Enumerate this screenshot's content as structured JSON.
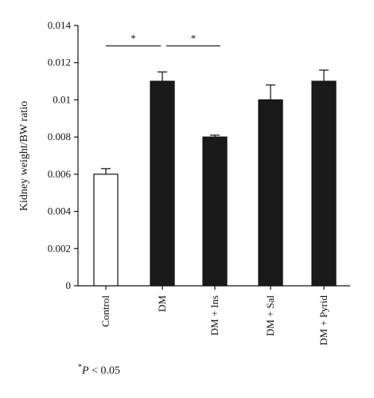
{
  "chart_data": {
    "type": "bar",
    "title": "",
    "xlabel": "",
    "ylabel": "Kidney weight/BW ratio",
    "ylim": [
      0,
      0.014
    ],
    "yticks": [
      "0",
      "0.002",
      "0.004",
      "0.006",
      "0.008",
      "0.01",
      "0.012",
      "0.014"
    ],
    "categories": [
      "Control",
      "DM",
      "DM + Ins",
      "DM + Sal",
      "DM + Pyrid"
    ],
    "values": [
      0.006,
      0.011,
      0.008,
      0.01,
      0.011
    ],
    "errors": [
      0.0003,
      0.0005,
      0.0001,
      0.0008,
      0.0006
    ],
    "bar_fills": [
      "#ffffff",
      "#1a1a1a",
      "#1a1a1a",
      "#1a1a1a",
      "#1a1a1a"
    ],
    "significance": [
      {
        "from": 0,
        "to": 1,
        "y": 0.0129,
        "label": "*"
      },
      {
        "from": 1,
        "to": 2,
        "y": 0.0129,
        "label": "*"
      }
    ],
    "grid": false,
    "legend": "none"
  },
  "footnote": {
    "marker": "*",
    "symbol": "P",
    "text": " < 0.05"
  }
}
